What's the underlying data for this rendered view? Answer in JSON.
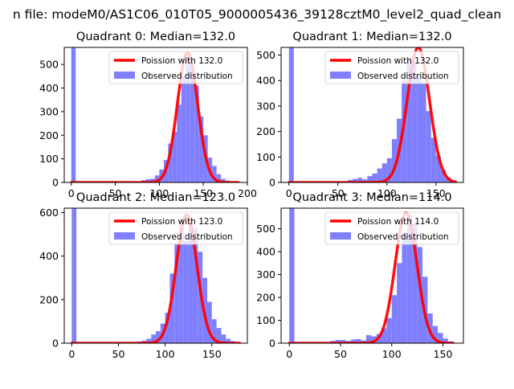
{
  "figure": {
    "suptitle": "n file: modeM0/AS1C06_010T05_9000005436_39128cztM0_level2_quad_clean"
  },
  "colors": {
    "hist": "#8080ff",
    "fit": "#ff0000",
    "axis": "#000000",
    "background": "#ffffff"
  },
  "chart_data": [
    {
      "type": "bar",
      "title": "Quadrant 0: Median=132.0",
      "xlim": [
        -8,
        200
      ],
      "ylim": [
        0,
        572
      ],
      "xticks": [
        0,
        50,
        100,
        150,
        200
      ],
      "yticks": [
        0,
        100,
        200,
        300,
        400,
        500
      ],
      "legend": {
        "position": "top-right",
        "entries": [
          "Poission with 132.0",
          "Observed distribution"
        ]
      },
      "histogram": {
        "name": "Observed distribution",
        "bin_width": 5,
        "bins": [
          [
            0,
            572
          ],
          [
            80,
            10
          ],
          [
            85,
            14
          ],
          [
            90,
            16
          ],
          [
            95,
            30
          ],
          [
            100,
            55
          ],
          [
            105,
            95
          ],
          [
            110,
            165
          ],
          [
            115,
            215
          ],
          [
            120,
            330
          ],
          [
            125,
            450
          ],
          [
            130,
            540
          ],
          [
            135,
            490
          ],
          [
            140,
            410
          ],
          [
            145,
            280
          ],
          [
            150,
            200
          ],
          [
            155,
            105
          ],
          [
            160,
            70
          ],
          [
            165,
            35
          ],
          [
            170,
            15
          ],
          [
            175,
            8
          ],
          [
            180,
            5
          ],
          [
            185,
            2
          ]
        ]
      },
      "fit": {
        "name": "Poission with 132.0",
        "lambda": 132.0,
        "peak": 550,
        "x_range": [
          0,
          190
        ]
      }
    },
    {
      "type": "bar",
      "title": "Quadrant 1: Median=132.0",
      "xlim": [
        -8,
        178
      ],
      "ylim": [
        0,
        530
      ],
      "xticks": [
        0,
        50,
        100,
        150
      ],
      "yticks": [
        0,
        100,
        200,
        300,
        400,
        500
      ],
      "legend": {
        "position": "top-right",
        "entries": [
          "Poission with 132.0",
          "Observed distribution"
        ]
      },
      "histogram": {
        "name": "Observed distribution",
        "bin_width": 5,
        "bins": [
          [
            0,
            530
          ],
          [
            60,
            10
          ],
          [
            65,
            14
          ],
          [
            70,
            18
          ],
          [
            75,
            12
          ],
          [
            80,
            25
          ],
          [
            85,
            35
          ],
          [
            90,
            55
          ],
          [
            95,
            75
          ],
          [
            100,
            95
          ],
          [
            105,
            170
          ],
          [
            110,
            250
          ],
          [
            115,
            400
          ],
          [
            120,
            480
          ],
          [
            125,
            470
          ],
          [
            130,
            420
          ],
          [
            135,
            390
          ],
          [
            140,
            280
          ],
          [
            145,
            175
          ],
          [
            150,
            105
          ],
          [
            155,
            50
          ],
          [
            160,
            20
          ],
          [
            165,
            8
          ]
        ]
      },
      "fit": {
        "name": "Poission with 132.0",
        "lambda": 132.0,
        "peak": 530,
        "x_range": [
          0,
          170
        ]
      }
    },
    {
      "type": "bar",
      "title": "Quadrant 2: Median=123.0",
      "xlim": [
        -8,
        188
      ],
      "ylim": [
        0,
        620
      ],
      "xticks": [
        0,
        50,
        100,
        150
      ],
      "yticks": [
        0,
        200,
        400,
        600
      ],
      "legend": {
        "position": "top-right",
        "entries": [
          "Poission with 123.0",
          "Observed distribution"
        ]
      },
      "histogram": {
        "name": "Observed distribution",
        "bin_width": 5,
        "bins": [
          [
            0,
            620
          ],
          [
            70,
            8
          ],
          [
            75,
            12
          ],
          [
            80,
            20
          ],
          [
            85,
            40
          ],
          [
            90,
            55
          ],
          [
            95,
            90
          ],
          [
            100,
            140
          ],
          [
            105,
            320
          ],
          [
            110,
            460
          ],
          [
            115,
            540
          ],
          [
            120,
            470
          ],
          [
            125,
            560
          ],
          [
            130,
            530
          ],
          [
            135,
            420
          ],
          [
            140,
            300
          ],
          [
            145,
            190
          ],
          [
            150,
            110
          ],
          [
            155,
            70
          ],
          [
            160,
            40
          ],
          [
            165,
            20
          ],
          [
            170,
            10
          ]
        ]
      },
      "fit": {
        "name": "Poission with 123.0",
        "lambda": 123.0,
        "peak": 590,
        "x_range": [
          0,
          180
        ]
      }
    },
    {
      "type": "bar",
      "title": "Quadrant 3: Median=114.0",
      "xlim": [
        -8,
        170
      ],
      "ylim": [
        0,
        590
      ],
      "xticks": [
        0,
        50,
        100,
        150
      ],
      "yticks": [
        0,
        100,
        200,
        300,
        400,
        500
      ],
      "legend": {
        "position": "top-right",
        "entries": [
          "Poission with 114.0",
          "Observed distribution"
        ]
      },
      "histogram": {
        "name": "Observed distribution",
        "bin_width": 5,
        "bins": [
          [
            0,
            590
          ],
          [
            40,
            10
          ],
          [
            45,
            14
          ],
          [
            50,
            14
          ],
          [
            55,
            10
          ],
          [
            60,
            16
          ],
          [
            65,
            18
          ],
          [
            70,
            12
          ],
          [
            75,
            35
          ],
          [
            80,
            30
          ],
          [
            85,
            40
          ],
          [
            90,
            65
          ],
          [
            95,
            110
          ],
          [
            100,
            210
          ],
          [
            105,
            350
          ],
          [
            110,
            480
          ],
          [
            115,
            560
          ],
          [
            120,
            520
          ],
          [
            125,
            420
          ],
          [
            130,
            290
          ],
          [
            135,
            130
          ],
          [
            140,
            75
          ],
          [
            145,
            45
          ],
          [
            150,
            20
          ],
          [
            155,
            8
          ]
        ]
      },
      "fit": {
        "name": "Poission with 114.0",
        "lambda": 114.0,
        "peak": 570,
        "x_range": [
          0,
          160
        ]
      }
    }
  ]
}
